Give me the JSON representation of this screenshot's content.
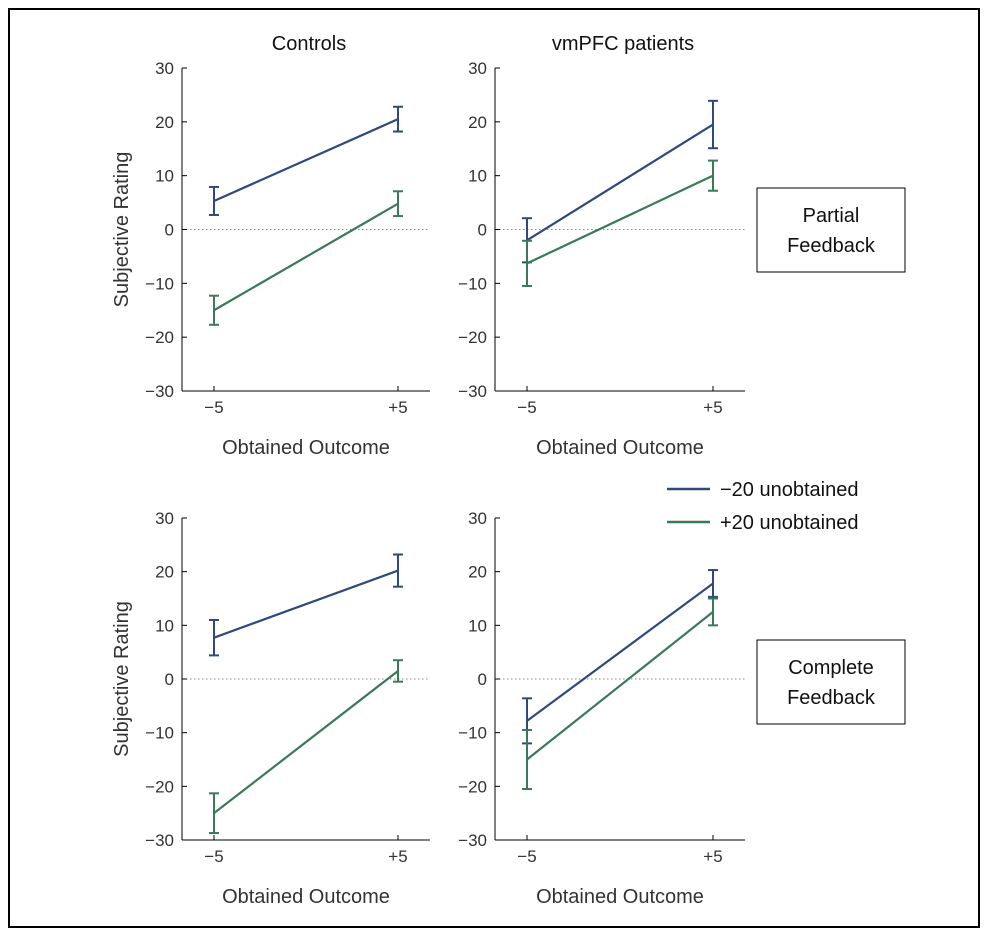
{
  "col_titles": [
    "Controls",
    "vmPFC patients"
  ],
  "row_labels": [
    [
      "Partial",
      "Feedback"
    ],
    [
      "Complete",
      "Feedback"
    ]
  ],
  "legend": {
    "entries": [
      {
        "label": "−20 unobtained",
        "color": "#2e4a7d"
      },
      {
        "label": "+20 unobtained",
        "color": "#3a7a58"
      }
    ]
  },
  "colors": {
    "minus20": "#2e4a7d",
    "plus20": "#3a7a58"
  },
  "chart_data": [
    {
      "type": "line",
      "title": "Controls",
      "xlabel": "Obtained Outcome",
      "ylabel": "Subjective Rating",
      "categories": [
        "−5",
        "+5"
      ],
      "ylim": [
        -30,
        30
      ],
      "yticks": [
        "30",
        "20",
        "10",
        "0",
        "−10",
        "−20",
        "−30"
      ],
      "series": [
        {
          "name": "−20 unobtained",
          "values": [
            5.3,
            20.5
          ],
          "errors": [
            2.6,
            2.3
          ]
        },
        {
          "name": "+20 unobtained",
          "values": [
            -15.0,
            4.8
          ],
          "errors": [
            2.7,
            2.3
          ]
        }
      ]
    },
    {
      "type": "line",
      "title": "vmPFC patients",
      "xlabel": "Obtained Outcome",
      "ylabel": "",
      "categories": [
        "−5",
        "+5"
      ],
      "ylim": [
        -30,
        30
      ],
      "yticks": [
        "30",
        "20",
        "10",
        "0",
        "−10",
        "−20",
        "−30"
      ],
      "series": [
        {
          "name": "−20 unobtained",
          "values": [
            -2.0,
            19.5
          ],
          "errors": [
            4.1,
            4.4
          ]
        },
        {
          "name": "+20 unobtained",
          "values": [
            -6.3,
            10.0
          ],
          "errors": [
            4.2,
            2.8
          ]
        }
      ]
    },
    {
      "type": "line",
      "title": "",
      "xlabel": "Obtained Outcome",
      "ylabel": "Subjective Rating",
      "categories": [
        "−5",
        "+5"
      ],
      "ylim": [
        -30,
        30
      ],
      "yticks": [
        "30",
        "20",
        "10",
        "0",
        "−10",
        "−20",
        "−30"
      ],
      "series": [
        {
          "name": "−20 unobtained",
          "values": [
            7.7,
            20.2
          ],
          "errors": [
            3.3,
            3.0
          ]
        },
        {
          "name": "+20 unobtained",
          "values": [
            -25.0,
            1.5
          ],
          "errors": [
            3.7,
            2.0
          ]
        }
      ]
    },
    {
      "type": "line",
      "title": "",
      "xlabel": "Obtained Outcome",
      "ylabel": "",
      "categories": [
        "−5",
        "+5"
      ],
      "ylim": [
        -30,
        30
      ],
      "yticks": [
        "30",
        "20",
        "10",
        "0",
        "−10",
        "−20",
        "−30"
      ],
      "series": [
        {
          "name": "−20 unobtained",
          "values": [
            -7.8,
            17.8
          ],
          "errors": [
            4.2,
            2.5
          ]
        },
        {
          "name": "+20 unobtained",
          "values": [
            -15.0,
            12.5
          ],
          "errors": [
            5.5,
            2.5
          ]
        }
      ]
    }
  ]
}
